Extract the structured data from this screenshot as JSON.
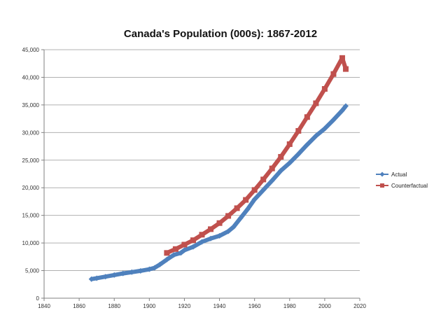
{
  "chart_data": {
    "type": "line",
    "title": "Canada's Population (000s): 1867-2012",
    "xlabel": "",
    "ylabel": "",
    "xlim": [
      1840,
      2020
    ],
    "ylim": [
      0,
      45000
    ],
    "x_ticks": [
      1840,
      1860,
      1880,
      1900,
      1920,
      1940,
      1960,
      1980,
      2000,
      2020
    ],
    "y_ticks": [
      0,
      5000,
      10000,
      15000,
      20000,
      25000,
      30000,
      35000,
      40000,
      45000
    ],
    "x_tick_labels": [
      "1840",
      "1860",
      "1880",
      "1900",
      "1920",
      "1940",
      "1960",
      "1980",
      "2000",
      "2020"
    ],
    "y_tick_labels": [
      "0",
      "5,000",
      "10,000",
      "15,000",
      "20,000",
      "25,000",
      "30,000",
      "35,000",
      "40,000",
      "45,000"
    ],
    "grid": "horizontal",
    "legend_position": "right",
    "series": [
      {
        "name": "Actual",
        "color": "#4f81bd",
        "marker": "diamond",
        "points": [
          [
            1867,
            3460
          ],
          [
            1870,
            3620
          ],
          [
            1875,
            3900
          ],
          [
            1880,
            4200
          ],
          [
            1885,
            4490
          ],
          [
            1890,
            4720
          ],
          [
            1895,
            4950
          ],
          [
            1900,
            5240
          ],
          [
            1903,
            5500
          ],
          [
            1906,
            6100
          ],
          [
            1910,
            7000
          ],
          [
            1914,
            7850
          ],
          [
            1918,
            8200
          ],
          [
            1920,
            8700
          ],
          [
            1925,
            9300
          ],
          [
            1930,
            10200
          ],
          [
            1935,
            10800
          ],
          [
            1940,
            11300
          ],
          [
            1945,
            12100
          ],
          [
            1948,
            12900
          ],
          [
            1952,
            14500
          ],
          [
            1956,
            16100
          ],
          [
            1960,
            17900
          ],
          [
            1965,
            19600
          ],
          [
            1970,
            21300
          ],
          [
            1975,
            23100
          ],
          [
            1980,
            24500
          ],
          [
            1985,
            26100
          ],
          [
            1990,
            27800
          ],
          [
            1995,
            29400
          ],
          [
            2000,
            30700
          ],
          [
            2005,
            32300
          ],
          [
            2010,
            34000
          ],
          [
            2012,
            34800
          ]
        ]
      },
      {
        "name": "Counterfactual",
        "color": "#c0504d",
        "marker": "square",
        "points": [
          [
            1910,
            8200
          ],
          [
            1915,
            8900
          ],
          [
            1920,
            9700
          ],
          [
            1925,
            10500
          ],
          [
            1930,
            11500
          ],
          [
            1935,
            12500
          ],
          [
            1940,
            13600
          ],
          [
            1945,
            14900
          ],
          [
            1950,
            16300
          ],
          [
            1955,
            17800
          ],
          [
            1960,
            19600
          ],
          [
            1965,
            21500
          ],
          [
            1970,
            23500
          ],
          [
            1975,
            25600
          ],
          [
            1980,
            27900
          ],
          [
            1985,
            30300
          ],
          [
            1990,
            32800
          ],
          [
            1995,
            35300
          ],
          [
            2000,
            37900
          ],
          [
            2005,
            40600
          ],
          [
            2010,
            43500
          ],
          [
            2012,
            41500
          ]
        ]
      }
    ]
  }
}
